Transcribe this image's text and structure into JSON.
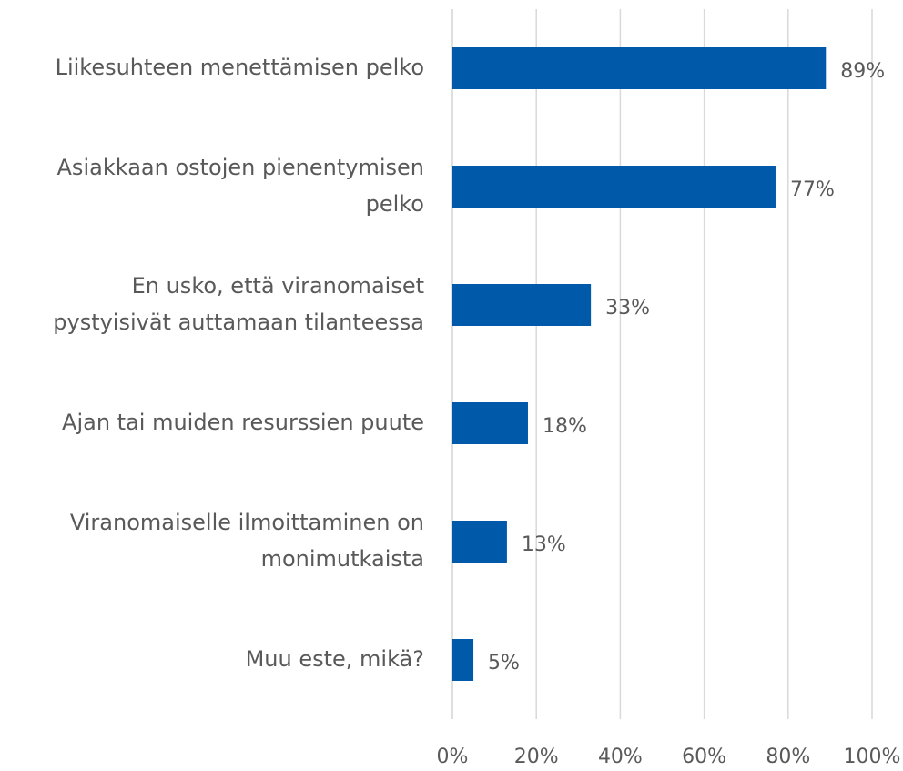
{
  "chart_data": {
    "type": "hbar",
    "categories": [
      "Liikesuhteen menettämisen pelko",
      "Asiakkaan ostojen pienentymisen\npelko",
      "En usko, että viranomaiset\npystyisivät auttamaan tilanteessa",
      "Ajan tai muiden resurssien puute",
      "Viranomaiselle ilmoittaminen on\nmonimutkaista",
      "Muu este, mikä?"
    ],
    "values": [
      89,
      77,
      33,
      18,
      13,
      5
    ],
    "value_labels": [
      "89%",
      "77%",
      "33%",
      "18%",
      "13%",
      "5%"
    ],
    "color": "#005aa9",
    "xlim": [
      0,
      100
    ],
    "xticks": [
      {
        "value": 0,
        "label": "0%"
      },
      {
        "value": 20,
        "label": "20%"
      },
      {
        "value": 40,
        "label": "40%"
      },
      {
        "value": 60,
        "label": "60%"
      },
      {
        "value": 80,
        "label": "80%"
      },
      {
        "value": 100,
        "label": "100%"
      }
    ],
    "grid": true
  }
}
